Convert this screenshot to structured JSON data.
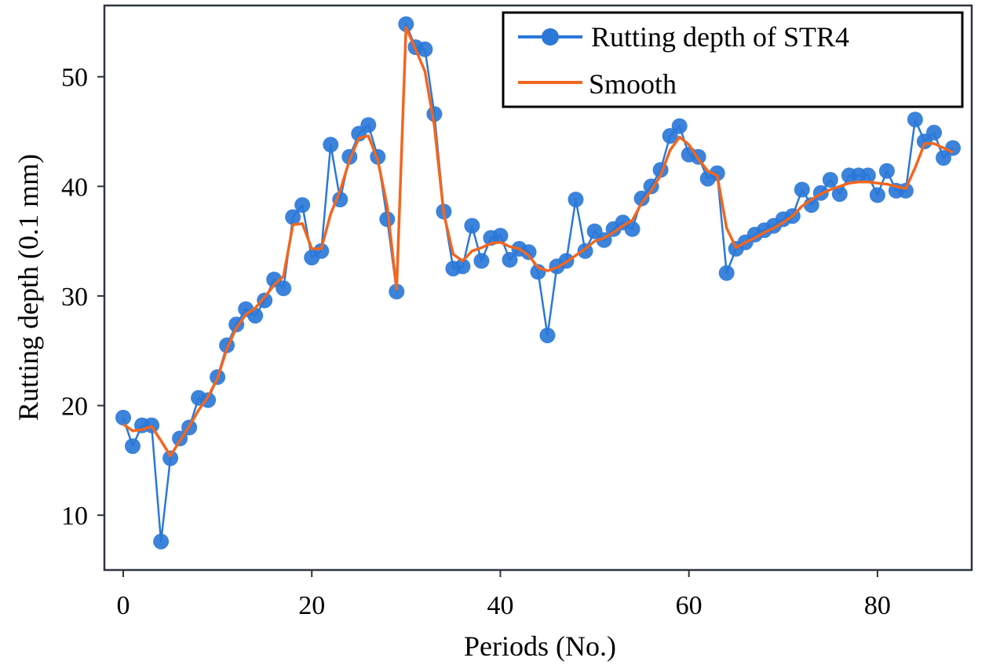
{
  "chart_data": {
    "type": "line",
    "title": "",
    "xlabel": "Periods (No.)",
    "ylabel": "Rutting depth (0.1 mm)",
    "xlim": [
      -2,
      90
    ],
    "ylim": [
      5,
      56.5
    ],
    "xticks": [
      0,
      20,
      40,
      60,
      80
    ],
    "yticks": [
      10,
      20,
      30,
      40,
      50
    ],
    "grid": false,
    "legend_position": "top-right",
    "series": [
      {
        "name": "Rutting depth of STR4",
        "style": "line-markers",
        "color": "#2b78d8",
        "x": [
          0,
          1,
          2,
          3,
          4,
          5,
          6,
          7,
          8,
          9,
          10,
          11,
          12,
          13,
          14,
          15,
          16,
          17,
          18,
          19,
          20,
          21,
          22,
          23,
          24,
          25,
          26,
          27,
          28,
          29,
          30,
          31,
          32,
          33,
          34,
          35,
          36,
          37,
          38,
          39,
          40,
          41,
          42,
          43,
          44,
          45,
          46,
          47,
          48,
          49,
          50,
          51,
          52,
          53,
          54,
          55,
          56,
          57,
          58,
          59,
          60,
          61,
          62,
          63,
          64,
          65,
          66,
          67,
          68,
          69,
          70,
          71,
          72,
          73,
          74,
          75,
          76,
          77,
          78,
          79,
          80,
          81,
          82,
          83,
          84,
          85,
          86,
          87,
          88
        ],
        "y": [
          18.9,
          16.3,
          18.2,
          18.2,
          7.6,
          15.2,
          17.0,
          18.0,
          20.7,
          20.5,
          22.6,
          25.5,
          27.4,
          28.8,
          28.2,
          29.6,
          31.5,
          30.7,
          37.2,
          38.3,
          33.5,
          34.1,
          43.8,
          38.8,
          42.7,
          44.8,
          45.6,
          42.7,
          37.0,
          30.4,
          54.8,
          52.7,
          52.5,
          46.6,
          37.7,
          32.5,
          32.7,
          36.4,
          33.2,
          35.3,
          35.5,
          33.3,
          34.3,
          34.0,
          32.2,
          26.4,
          32.7,
          33.2,
          38.8,
          34.1,
          35.9,
          35.1,
          36.1,
          36.7,
          36.1,
          38.9,
          40.0,
          41.5,
          44.6,
          45.5,
          42.9,
          42.7,
          40.7,
          41.2,
          32.1,
          34.3,
          34.9,
          35.6,
          36.0,
          36.4,
          37.0,
          37.3,
          39.7,
          38.3,
          39.4,
          40.6,
          39.3,
          41.0,
          41.0,
          41.0,
          39.2,
          41.4,
          39.6,
          39.6,
          46.1,
          44.1,
          44.9,
          42.6,
          43.5
        ]
      },
      {
        "name": "Smooth",
        "style": "line",
        "color": "#f2661f",
        "x": [
          0,
          1,
          2,
          3,
          4,
          5,
          6,
          7,
          8,
          9,
          10,
          11,
          12,
          13,
          14,
          15,
          16,
          17,
          18,
          19,
          20,
          21,
          22,
          23,
          24,
          25,
          26,
          27,
          28,
          29,
          30,
          31,
          32,
          33,
          34,
          35,
          36,
          37,
          38,
          39,
          40,
          41,
          42,
          43,
          44,
          45,
          46,
          47,
          48,
          49,
          50,
          51,
          52,
          53,
          54,
          55,
          56,
          57,
          58,
          59,
          60,
          61,
          62,
          63,
          64,
          65,
          66,
          67,
          68,
          69,
          70,
          71,
          72,
          73,
          74,
          75,
          76,
          77,
          78,
          79,
          80,
          81,
          82,
          83,
          84,
          85,
          86,
          87,
          88
        ],
        "y": [
          18.3,
          17.7,
          17.8,
          18.1,
          16.8,
          15.4,
          16.8,
          18.1,
          19.6,
          20.8,
          22.5,
          25.2,
          27.1,
          28.3,
          28.9,
          29.9,
          31.0,
          31.8,
          36.5,
          36.6,
          34.3,
          34.3,
          37.5,
          39.6,
          42.4,
          44.4,
          44.6,
          42.4,
          38.2,
          30.6,
          54.5,
          52.5,
          50.5,
          45.5,
          37.5,
          33.8,
          33.2,
          34.1,
          34.4,
          34.8,
          34.9,
          34.5,
          34.3,
          33.7,
          32.6,
          32.3,
          32.6,
          33.1,
          33.7,
          34.3,
          35.0,
          35.3,
          35.8,
          36.4,
          36.9,
          38.5,
          39.6,
          41.0,
          43.3,
          44.5,
          43.8,
          42.5,
          41.4,
          41.0,
          36.2,
          34.4,
          34.9,
          35.3,
          35.8,
          36.2,
          36.7,
          37.3,
          38.2,
          38.8,
          39.3,
          39.7,
          40.0,
          40.3,
          40.4,
          40.4,
          40.3,
          40.2,
          40.0,
          39.8,
          41.7,
          43.9,
          43.9,
          43.5,
          43.1
        ]
      }
    ]
  }
}
